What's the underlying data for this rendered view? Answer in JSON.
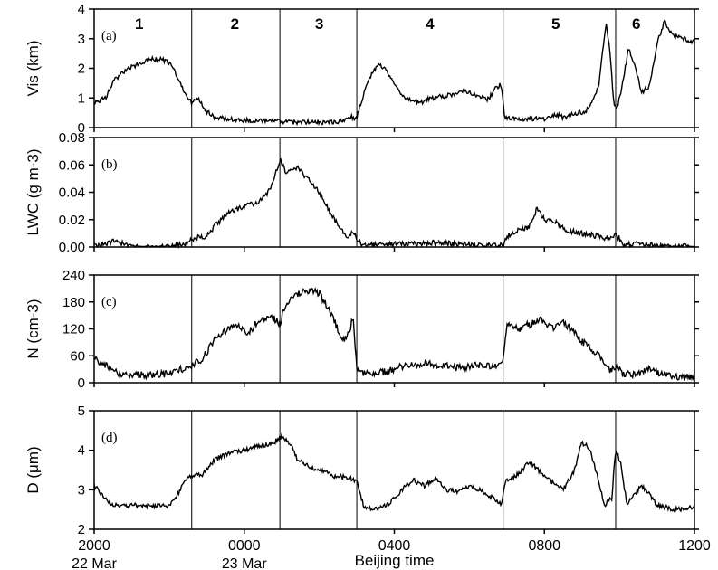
{
  "chart_data": {
    "type": "line",
    "x_axis": {
      "label": "Beijing time",
      "range_hours": [
        20,
        36
      ],
      "ticks": [
        {
          "value": 20,
          "label": "2000",
          "sublabel": "22 Mar"
        },
        {
          "value": 24,
          "label": "0000",
          "sublabel": "23 Mar"
        },
        {
          "value": 28,
          "label": "0400",
          "sublabel": ""
        },
        {
          "value": 32,
          "label": "0800",
          "sublabel": ""
        },
        {
          "value": 36,
          "label": "1200",
          "sublabel": ""
        }
      ]
    },
    "period_boundaries_hours": [
      22.6,
      24.95,
      27.0,
      30.9,
      33.9
    ],
    "period_labels": [
      {
        "label": "1",
        "x": 21.2
      },
      {
        "label": "2",
        "x": 23.75
      },
      {
        "label": "3",
        "x": 26.0
      },
      {
        "label": "4",
        "x": 28.95
      },
      {
        "label": "5",
        "x": 32.3
      },
      {
        "label": "6",
        "x": 34.45
      }
    ],
    "panels": [
      {
        "letter": "(a)",
        "ylabel": "Vis (km)",
        "ylim": [
          0,
          4
        ],
        "yticks": [
          0,
          1,
          2,
          3,
          4
        ],
        "noise": 0.08,
        "series": [
          [
            20,
            0.85
          ],
          [
            20.3,
            1.0
          ],
          [
            20.5,
            1.55
          ],
          [
            20.8,
            1.9
          ],
          [
            21.1,
            2.1
          ],
          [
            21.5,
            2.3
          ],
          [
            21.8,
            2.3
          ],
          [
            22.0,
            2.2
          ],
          [
            22.2,
            1.75
          ],
          [
            22.4,
            1.2
          ],
          [
            22.6,
            0.85
          ],
          [
            22.8,
            0.95
          ],
          [
            23.0,
            0.55
          ],
          [
            23.2,
            0.35
          ],
          [
            23.6,
            0.28
          ],
          [
            24.0,
            0.25
          ],
          [
            24.5,
            0.22
          ],
          [
            25.0,
            0.2
          ],
          [
            25.5,
            0.18
          ],
          [
            26.0,
            0.18
          ],
          [
            26.5,
            0.2
          ],
          [
            26.7,
            0.25
          ],
          [
            26.8,
            0.42
          ],
          [
            26.9,
            0.3
          ],
          [
            27.0,
            0.35
          ],
          [
            27.2,
            1.2
          ],
          [
            27.4,
            1.85
          ],
          [
            27.6,
            2.15
          ],
          [
            27.8,
            1.9
          ],
          [
            28.0,
            1.5
          ],
          [
            28.3,
            0.95
          ],
          [
            28.7,
            0.85
          ],
          [
            29.0,
            1.0
          ],
          [
            29.3,
            1.05
          ],
          [
            29.6,
            1.15
          ],
          [
            29.9,
            1.25
          ],
          [
            30.2,
            1.1
          ],
          [
            30.5,
            0.95
          ],
          [
            30.7,
            1.35
          ],
          [
            30.85,
            1.45
          ],
          [
            30.95,
            0.3
          ],
          [
            31.2,
            0.3
          ],
          [
            31.6,
            0.3
          ],
          [
            32.0,
            0.3
          ],
          [
            32.3,
            0.45
          ],
          [
            32.5,
            0.35
          ],
          [
            32.8,
            0.45
          ],
          [
            33.1,
            0.55
          ],
          [
            33.3,
            0.9
          ],
          [
            33.45,
            1.4
          ],
          [
            33.55,
            2.6
          ],
          [
            33.65,
            3.55
          ],
          [
            33.75,
            2.5
          ],
          [
            33.85,
            0.8
          ],
          [
            33.95,
            0.7
          ],
          [
            34.1,
            1.6
          ],
          [
            34.25,
            2.7
          ],
          [
            34.4,
            2.1
          ],
          [
            34.6,
            1.2
          ],
          [
            34.8,
            1.4
          ],
          [
            35.0,
            2.8
          ],
          [
            35.2,
            3.6
          ],
          [
            35.4,
            3.1
          ],
          [
            35.7,
            3.0
          ],
          [
            36.0,
            2.9
          ]
        ]
      },
      {
        "letter": "(b)",
        "ylabel": "LWC (g m-3)",
        "ylim": [
          0,
          0.08
        ],
        "yticks": [
          0.0,
          0.02,
          0.04,
          0.06,
          0.08
        ],
        "tick_labels": [
          "0.00",
          "0.02",
          "0.04",
          "0.06",
          "0.08"
        ],
        "noise": 0.002,
        "series": [
          [
            20,
            0.001
          ],
          [
            20.5,
            0.004
          ],
          [
            21.0,
            0.001
          ],
          [
            21.5,
            0.0
          ],
          [
            22.0,
            0.0
          ],
          [
            22.4,
            0.002
          ],
          [
            22.6,
            0.006
          ],
          [
            23.0,
            0.008
          ],
          [
            23.3,
            0.018
          ],
          [
            23.6,
            0.025
          ],
          [
            24.0,
            0.03
          ],
          [
            24.3,
            0.032
          ],
          [
            24.6,
            0.038
          ],
          [
            24.8,
            0.05
          ],
          [
            24.95,
            0.064
          ],
          [
            25.1,
            0.055
          ],
          [
            25.4,
            0.058
          ],
          [
            25.7,
            0.05
          ],
          [
            26.0,
            0.04
          ],
          [
            26.3,
            0.025
          ],
          [
            26.6,
            0.012
          ],
          [
            26.8,
            0.007
          ],
          [
            26.9,
            0.012
          ],
          [
            27.0,
            0.005
          ],
          [
            27.2,
            0.001
          ],
          [
            28.0,
            0.002
          ],
          [
            29.0,
            0.003
          ],
          [
            30.0,
            0.002
          ],
          [
            30.9,
            0.001
          ],
          [
            31.0,
            0.008
          ],
          [
            31.3,
            0.012
          ],
          [
            31.6,
            0.015
          ],
          [
            31.8,
            0.028
          ],
          [
            32.0,
            0.02
          ],
          [
            32.3,
            0.018
          ],
          [
            32.6,
            0.012
          ],
          [
            33.0,
            0.01
          ],
          [
            33.4,
            0.008
          ],
          [
            33.8,
            0.006
          ],
          [
            33.9,
            0.01
          ],
          [
            34.1,
            0.002
          ],
          [
            34.5,
            0.002
          ],
          [
            35.0,
            0.001
          ],
          [
            36.0,
            0.0
          ]
        ]
      },
      {
        "letter": "(c)",
        "ylabel": "N (cm-3)",
        "ylim": [
          0,
          240
        ],
        "yticks": [
          0,
          60,
          120,
          180,
          240
        ],
        "noise": 8,
        "series": [
          [
            20,
            52
          ],
          [
            20.3,
            40
          ],
          [
            20.6,
            22
          ],
          [
            21.0,
            18
          ],
          [
            21.5,
            16
          ],
          [
            22.0,
            20
          ],
          [
            22.3,
            30
          ],
          [
            22.6,
            38
          ],
          [
            22.9,
            55
          ],
          [
            23.2,
            95
          ],
          [
            23.5,
            115
          ],
          [
            23.8,
            130
          ],
          [
            24.1,
            110
          ],
          [
            24.4,
            140
          ],
          [
            24.7,
            150
          ],
          [
            24.95,
            130
          ],
          [
            25.1,
            175
          ],
          [
            25.4,
            195
          ],
          [
            25.7,
            205
          ],
          [
            26.0,
            200
          ],
          [
            26.2,
            170
          ],
          [
            26.4,
            140
          ],
          [
            26.6,
            90
          ],
          [
            26.8,
            110
          ],
          [
            26.9,
            150
          ],
          [
            27.0,
            30
          ],
          [
            27.3,
            18
          ],
          [
            27.8,
            25
          ],
          [
            28.3,
            40
          ],
          [
            28.8,
            42
          ],
          [
            29.3,
            38
          ],
          [
            29.8,
            32
          ],
          [
            30.3,
            40
          ],
          [
            30.8,
            35
          ],
          [
            30.9,
            45
          ],
          [
            31.0,
            130
          ],
          [
            31.3,
            120
          ],
          [
            31.6,
            130
          ],
          [
            31.9,
            140
          ],
          [
            32.2,
            120
          ],
          [
            32.5,
            135
          ],
          [
            32.8,
            110
          ],
          [
            33.1,
            85
          ],
          [
            33.4,
            65
          ],
          [
            33.7,
            30
          ],
          [
            33.85,
            30
          ],
          [
            33.95,
            40
          ],
          [
            34.1,
            18
          ],
          [
            34.5,
            20
          ],
          [
            34.8,
            35
          ],
          [
            35.1,
            20
          ],
          [
            35.5,
            12
          ],
          [
            36.0,
            12
          ]
        ]
      },
      {
        "letter": "(d)",
        "ylabel": "D (μm)",
        "ylim": [
          2,
          5
        ],
        "yticks": [
          2,
          3,
          4,
          5
        ],
        "noise": 0.06,
        "series": [
          [
            20,
            3.1
          ],
          [
            20.3,
            2.8
          ],
          [
            20.5,
            2.6
          ],
          [
            21.0,
            2.6
          ],
          [
            21.5,
            2.6
          ],
          [
            22.0,
            2.6
          ],
          [
            22.2,
            2.85
          ],
          [
            22.4,
            3.2
          ],
          [
            22.6,
            3.35
          ],
          [
            22.9,
            3.4
          ],
          [
            23.2,
            3.75
          ],
          [
            23.6,
            3.95
          ],
          [
            24.0,
            4.0
          ],
          [
            24.4,
            4.1
          ],
          [
            24.8,
            4.2
          ],
          [
            25.0,
            4.35
          ],
          [
            25.2,
            4.2
          ],
          [
            25.4,
            3.8
          ],
          [
            25.7,
            3.6
          ],
          [
            26.0,
            3.5
          ],
          [
            26.4,
            3.35
          ],
          [
            26.8,
            3.3
          ],
          [
            27.0,
            3.2
          ],
          [
            27.2,
            2.55
          ],
          [
            27.5,
            2.5
          ],
          [
            27.8,
            2.6
          ],
          [
            28.2,
            3.0
          ],
          [
            28.5,
            3.25
          ],
          [
            28.8,
            3.1
          ],
          [
            29.1,
            3.3
          ],
          [
            29.4,
            3.0
          ],
          [
            29.7,
            2.95
          ],
          [
            30.0,
            3.1
          ],
          [
            30.3,
            3.0
          ],
          [
            30.6,
            2.8
          ],
          [
            30.85,
            2.65
          ],
          [
            30.95,
            3.2
          ],
          [
            31.3,
            3.4
          ],
          [
            31.6,
            3.7
          ],
          [
            31.9,
            3.45
          ],
          [
            32.2,
            3.2
          ],
          [
            32.5,
            3.0
          ],
          [
            32.8,
            3.5
          ],
          [
            33.0,
            4.2
          ],
          [
            33.2,
            4.05
          ],
          [
            33.4,
            3.4
          ],
          [
            33.6,
            2.6
          ],
          [
            33.8,
            2.8
          ],
          [
            33.9,
            4.05
          ],
          [
            34.05,
            3.6
          ],
          [
            34.2,
            2.6
          ],
          [
            34.4,
            2.9
          ],
          [
            34.6,
            3.1
          ],
          [
            34.8,
            2.9
          ],
          [
            35.0,
            2.6
          ],
          [
            35.5,
            2.5
          ],
          [
            36.0,
            2.55
          ]
        ]
      }
    ]
  }
}
